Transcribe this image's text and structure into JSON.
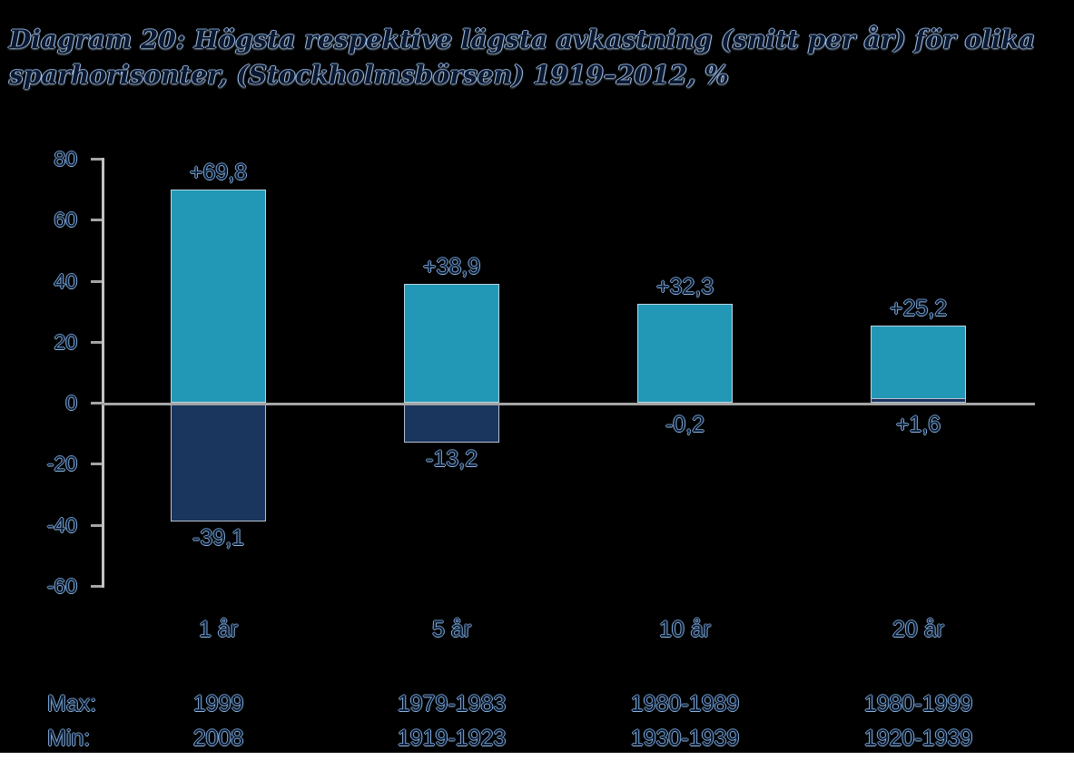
{
  "title": "Diagram 20: Högsta respektive lägsta avkastning (snitt per år) för olika sparhorisonter, (Stockholmsbörsen) 1919–2012, %",
  "chart_data": {
    "type": "bar",
    "title": "Diagram 20: Högsta respektive lägsta avkastning (snitt per år) för olika sparhorisonter, (Stockholmsbörsen) 1919–2012, %",
    "categories": [
      "1 år",
      "5 år",
      "10 år",
      "20 år"
    ],
    "series": [
      {
        "name": "Högsta avkastning (max)",
        "color": "#2398b6",
        "values": [
          69.8,
          38.9,
          32.3,
          25.2
        ],
        "labels": [
          "+69,8",
          "+38,9",
          "+32,3",
          "+25,2"
        ]
      },
      {
        "name": "Lägsta avkastning (min)",
        "color": "#1a355e",
        "values": [
          -39.1,
          -13.2,
          -0.2,
          1.6
        ],
        "labels": [
          "-39,1",
          "-13,2",
          "-0,2",
          "+1,6"
        ]
      }
    ],
    "yticks": [
      80,
      60,
      40,
      20,
      0,
      -20,
      -40,
      -60
    ],
    "ylim": [
      -60,
      80
    ],
    "xlabel": "",
    "ylabel": "",
    "grid": false,
    "legend": false,
    "axis_color": "#a5a5a5",
    "axis_line_color": "#c2c2c2",
    "background_color": "#000000",
    "period_table": {
      "rows": [
        {
          "label": "Max:",
          "values": [
            "1999",
            "1979-1983",
            "1980-1989",
            "1980-1999"
          ]
        },
        {
          "label": "Min:",
          "values": [
            "2008",
            "1919-1923",
            "1930-1939",
            "1920-1939"
          ]
        }
      ]
    }
  }
}
